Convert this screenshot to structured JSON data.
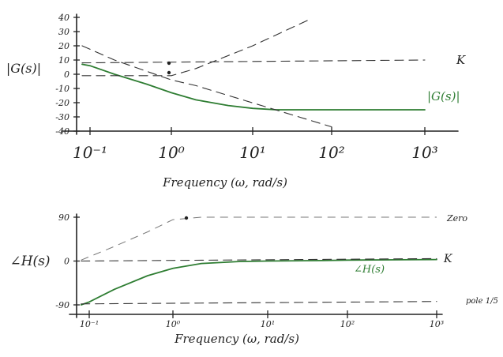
{
  "chart_data": [
    {
      "type": "line",
      "xlabel": "Frequency (ω, rad/s)",
      "ylabel": "|G(s)|",
      "x_scale": "log",
      "xlim": [
        0.08,
        1000
      ],
      "ylim": [
        -40,
        40
      ],
      "x_ticks": [
        0.1,
        1,
        10,
        100,
        1000
      ],
      "x_tick_labels": [
        "10⁻¹",
        "10⁰",
        "10¹",
        "10²",
        "10³"
      ],
      "y_ticks": [
        40,
        30,
        20,
        10,
        0,
        -10,
        -20,
        -30,
        -40
      ],
      "y_tick_labels": [
        "40",
        "30",
        "20",
        "10",
        "0",
        "-10",
        "-20",
        "-30",
        "-40"
      ],
      "grid": false,
      "colors": {
        "curve": "#2e7d32",
        "asymptote": "#333333"
      },
      "series": [
        {
          "name": "|G(s)|",
          "x": [
            0.08,
            0.1,
            0.2,
            0.5,
            1,
            2,
            5,
            10,
            20,
            50,
            100,
            200,
            500,
            1000
          ],
          "values": [
            7,
            6,
            0,
            -7,
            -13,
            -18,
            -22,
            -24,
            -25,
            -25,
            -25,
            -25,
            -25,
            -25
          ]
        },
        {
          "name": "K",
          "x": [
            0.08,
            1000
          ],
          "values": [
            8,
            10
          ]
        },
        {
          "x": [
            0.08,
            0.2,
            1,
            2,
            100
          ],
          "values": [
            20,
            10,
            -4,
            -8,
            -37
          ]
        },
        {
          "x": [
            0.08,
            1,
            2,
            10,
            50
          ],
          "values": [
            -1,
            -1,
            4,
            20,
            38
          ]
        }
      ],
      "annotations": [
        "K",
        "|G(s)|"
      ]
    },
    {
      "type": "line",
      "xlabel": "Frequency (ω, rad/s)",
      "ylabel": "∠H(s)",
      "x_scale": "log",
      "xlim": [
        0.08,
        1000
      ],
      "ylim": [
        -90,
        90
      ],
      "x_ticks": [
        0.1,
        1,
        10,
        100,
        1000
      ],
      "x_tick_labels": [
        "10⁻¹",
        "10⁰",
        "10¹",
        "10²",
        "10³"
      ],
      "y_ticks": [
        90,
        0,
        -90
      ],
      "y_tick_labels": [
        "90",
        "0",
        "-90"
      ],
      "grid": false,
      "colors": {
        "curve": "#2e7d32",
        "asymptote": "#333333"
      },
      "series": [
        {
          "name": "∠H(s)",
          "x": [
            0.08,
            0.1,
            0.2,
            0.5,
            1,
            2,
            5,
            10,
            50,
            100,
            1000
          ],
          "values": [
            -90,
            -84,
            -58,
            -30,
            -15,
            -5,
            -1,
            0,
            1,
            2,
            3
          ]
        },
        {
          "name": "Zero",
          "x": [
            0.08,
            0.2,
            0.5,
            1,
            2,
            1000
          ],
          "values": [
            2,
            30,
            60,
            85,
            90,
            90
          ]
        },
        {
          "name": "K",
          "x": [
            0.08,
            1000
          ],
          "values": [
            0,
            5
          ]
        },
        {
          "name": "pole 1/5",
          "x": [
            0.08,
            1000
          ],
          "values": [
            -88,
            -83
          ]
        }
      ],
      "annotations": [
        "Zero",
        "K",
        "∠H(s)",
        "pole 1/5"
      ]
    }
  ]
}
